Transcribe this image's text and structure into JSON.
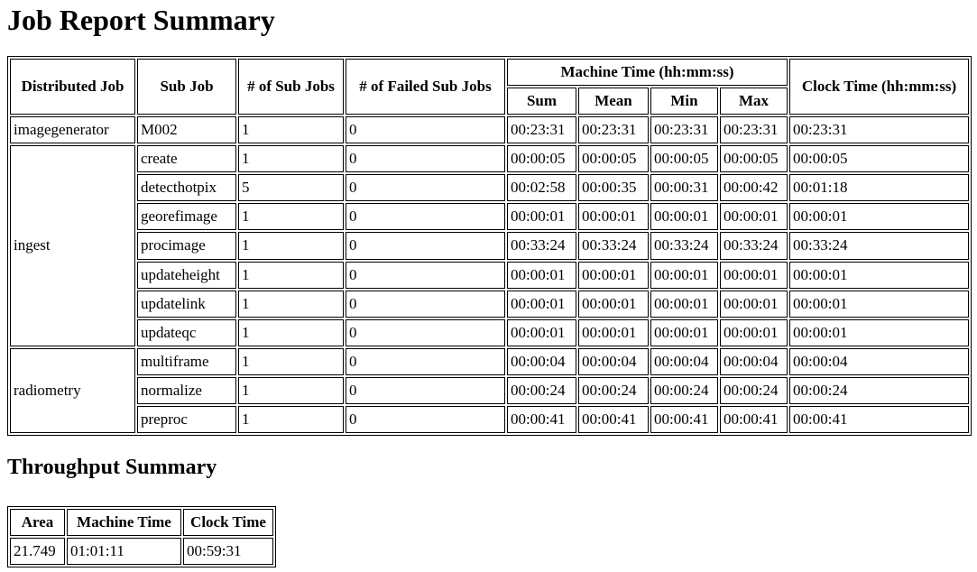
{
  "page": {
    "job_summary_title": "Job Report Summary",
    "throughput_title": "Throughput Summary"
  },
  "job_table": {
    "columns": {
      "distributed_job": "Distributed Job",
      "sub_job": "Sub Job",
      "num_sub_jobs": "# of Sub Jobs",
      "num_failed_sub_jobs": "# of Failed Sub Jobs",
      "machine_time_group": "Machine Time (hh:mm:ss)",
      "sum": "Sum",
      "mean": "Mean",
      "min": "Min",
      "max": "Max",
      "clock_time": "Clock Time (hh:mm:ss)"
    },
    "groups": [
      {
        "name": "imagegenerator",
        "rows": [
          {
            "sub_job": "M002",
            "num_sub_jobs": "1",
            "num_failed": "0",
            "sum": "00:23:31",
            "mean": "00:23:31",
            "min": "00:23:31",
            "max": "00:23:31",
            "clock": "00:23:31"
          }
        ]
      },
      {
        "name": "ingest",
        "rows": [
          {
            "sub_job": "create",
            "num_sub_jobs": "1",
            "num_failed": "0",
            "sum": "00:00:05",
            "mean": "00:00:05",
            "min": "00:00:05",
            "max": "00:00:05",
            "clock": "00:00:05"
          },
          {
            "sub_job": "detecthotpix",
            "num_sub_jobs": "5",
            "num_failed": "0",
            "sum": "00:02:58",
            "mean": "00:00:35",
            "min": "00:00:31",
            "max": "00:00:42",
            "clock": "00:01:18"
          },
          {
            "sub_job": "georefimage",
            "num_sub_jobs": "1",
            "num_failed": "0",
            "sum": "00:00:01",
            "mean": "00:00:01",
            "min": "00:00:01",
            "max": "00:00:01",
            "clock": "00:00:01"
          },
          {
            "sub_job": "procimage",
            "num_sub_jobs": "1",
            "num_failed": "0",
            "sum": "00:33:24",
            "mean": "00:33:24",
            "min": "00:33:24",
            "max": "00:33:24",
            "clock": "00:33:24"
          },
          {
            "sub_job": "updateheight",
            "num_sub_jobs": "1",
            "num_failed": "0",
            "sum": "00:00:01",
            "mean": "00:00:01",
            "min": "00:00:01",
            "max": "00:00:01",
            "clock": "00:00:01"
          },
          {
            "sub_job": "updatelink",
            "num_sub_jobs": "1",
            "num_failed": "0",
            "sum": "00:00:01",
            "mean": "00:00:01",
            "min": "00:00:01",
            "max": "00:00:01",
            "clock": "00:00:01"
          },
          {
            "sub_job": "updateqc",
            "num_sub_jobs": "1",
            "num_failed": "0",
            "sum": "00:00:01",
            "mean": "00:00:01",
            "min": "00:00:01",
            "max": "00:00:01",
            "clock": "00:00:01"
          }
        ]
      },
      {
        "name": "radiometry",
        "rows": [
          {
            "sub_job": "multiframe",
            "num_sub_jobs": "1",
            "num_failed": "0",
            "sum": "00:00:04",
            "mean": "00:00:04",
            "min": "00:00:04",
            "max": "00:00:04",
            "clock": "00:00:04"
          },
          {
            "sub_job": "normalize",
            "num_sub_jobs": "1",
            "num_failed": "0",
            "sum": "00:00:24",
            "mean": "00:00:24",
            "min": "00:00:24",
            "max": "00:00:24",
            "clock": "00:00:24"
          },
          {
            "sub_job": "preproc",
            "num_sub_jobs": "1",
            "num_failed": "0",
            "sum": "00:00:41",
            "mean": "00:00:41",
            "min": "00:00:41",
            "max": "00:00:41",
            "clock": "00:00:41"
          }
        ]
      }
    ]
  },
  "throughput_table": {
    "columns": {
      "area": "Area",
      "machine_time": "Machine Time",
      "clock_time": "Clock Time"
    },
    "row": {
      "area": "21.749",
      "machine_time": "01:01:11",
      "clock_time": "00:59:31"
    }
  }
}
